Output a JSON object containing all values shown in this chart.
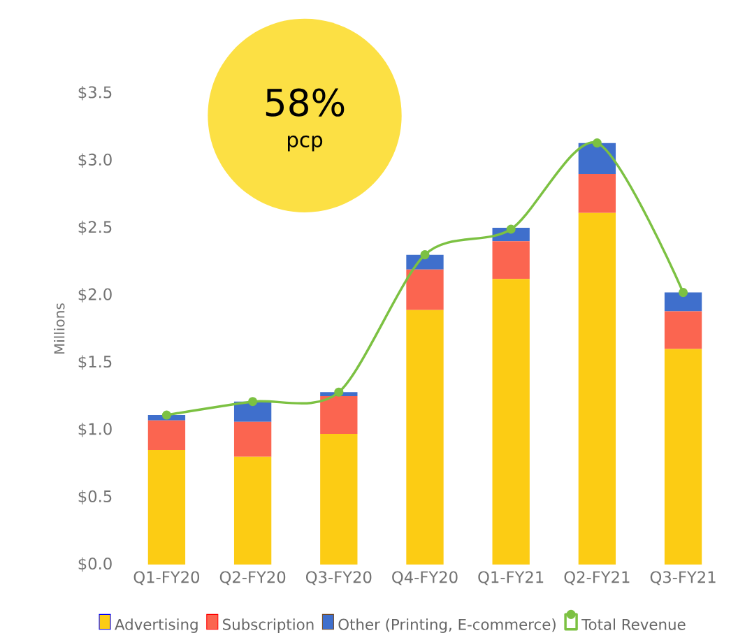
{
  "chart_data": {
    "type": "bar",
    "stacked": true,
    "categories": [
      "Q1-FY20",
      "Q2-FY20",
      "Q3-FY20",
      "Q4-FY20",
      "Q1-FY21",
      "Q2-FY21",
      "Q3-FY21"
    ],
    "series": [
      {
        "name": "Advertising",
        "color": "#fccc14",
        "values": [
          0.85,
          0.8,
          0.97,
          1.89,
          2.12,
          2.61,
          1.6
        ]
      },
      {
        "name": "Subscription",
        "color": "#fb6550",
        "values": [
          0.22,
          0.26,
          0.28,
          0.3,
          0.28,
          0.29,
          0.28
        ]
      },
      {
        "name": "Other (Printing, E-commerce)",
        "color": "#3f6fcc",
        "values": [
          0.04,
          0.15,
          0.03,
          0.11,
          0.1,
          0.23,
          0.14
        ]
      },
      {
        "name": "Total Revenue",
        "type": "line",
        "color": "#7cc142",
        "marker": "circle",
        "values": [
          1.11,
          1.21,
          1.28,
          2.3,
          2.49,
          3.13,
          2.02
        ]
      }
    ],
    "ylabel": "Millions",
    "ylim": [
      0,
      3.5
    ],
    "yticks": [
      {
        "value": 0,
        "label": "$0.0"
      },
      {
        "value": 0.5,
        "label": "$0.5"
      },
      {
        "value": 1,
        "label": "$1.0"
      },
      {
        "value": 1.5,
        "label": "$1.5"
      },
      {
        "value": 2,
        "label": "$2.0"
      },
      {
        "value": 2.5,
        "label": "$2.5"
      },
      {
        "value": 3,
        "label": "$3.0"
      },
      {
        "value": 3.5,
        "label": "$3.5"
      }
    ],
    "annotations": [
      "58%",
      "pcp"
    ],
    "legend": "bottom",
    "grid": false
  }
}
